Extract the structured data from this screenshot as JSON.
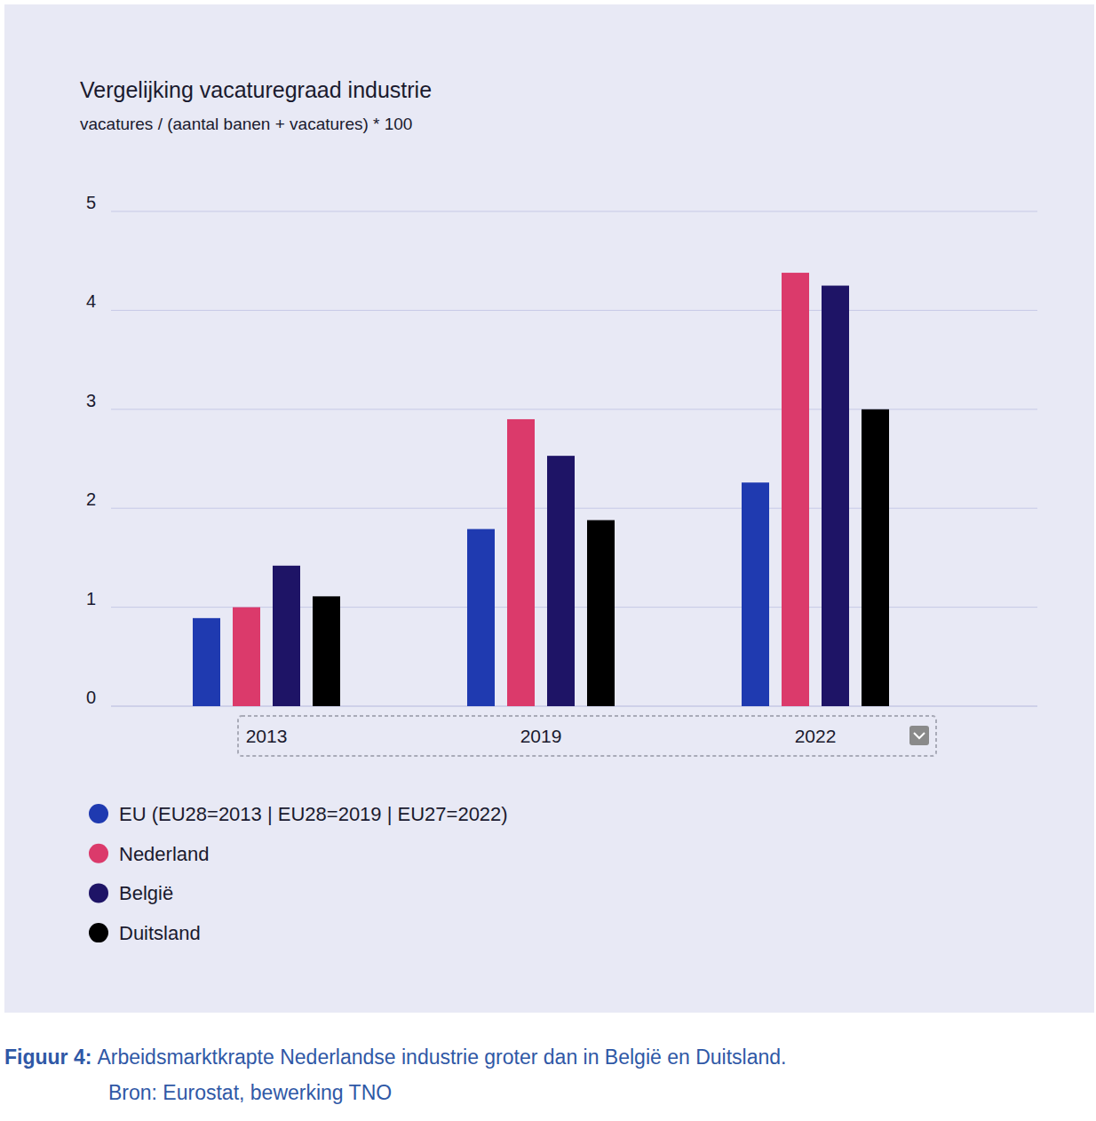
{
  "chart_data": {
    "type": "bar",
    "title": "Vergelijking vacaturegraad industrie",
    "subtitle": "vacatures / (aantal banen + vacatures) * 100",
    "categories": [
      "2013",
      "2019",
      "2022"
    ],
    "series": [
      {
        "name": "EU (EU28=2013 | EU28=2019 | EU27=2022)",
        "color": "#1f3ab0",
        "values": [
          0.89,
          1.79,
          2.26
        ]
      },
      {
        "name": "Nederland",
        "color": "#db3a6b",
        "values": [
          1.0,
          2.9,
          4.38
        ]
      },
      {
        "name": "België",
        "color": "#1e1466",
        "values": [
          1.42,
          2.53,
          4.25
        ]
      },
      {
        "name": "Duitsland",
        "color": "#000000",
        "values": [
          1.11,
          1.88,
          3.0
        ]
      }
    ],
    "ylim": [
      0,
      5
    ],
    "yticks": [
      0,
      1,
      2,
      3,
      4,
      5
    ],
    "grid": true,
    "legend": "bottom",
    "caption_label": "Figuur 4:",
    "caption": "Arbeidsmarktkrapte Nederlandse industrie groter dan in België en Duitsland.",
    "source": "Bron: Eurostat, bewerking TNO"
  }
}
